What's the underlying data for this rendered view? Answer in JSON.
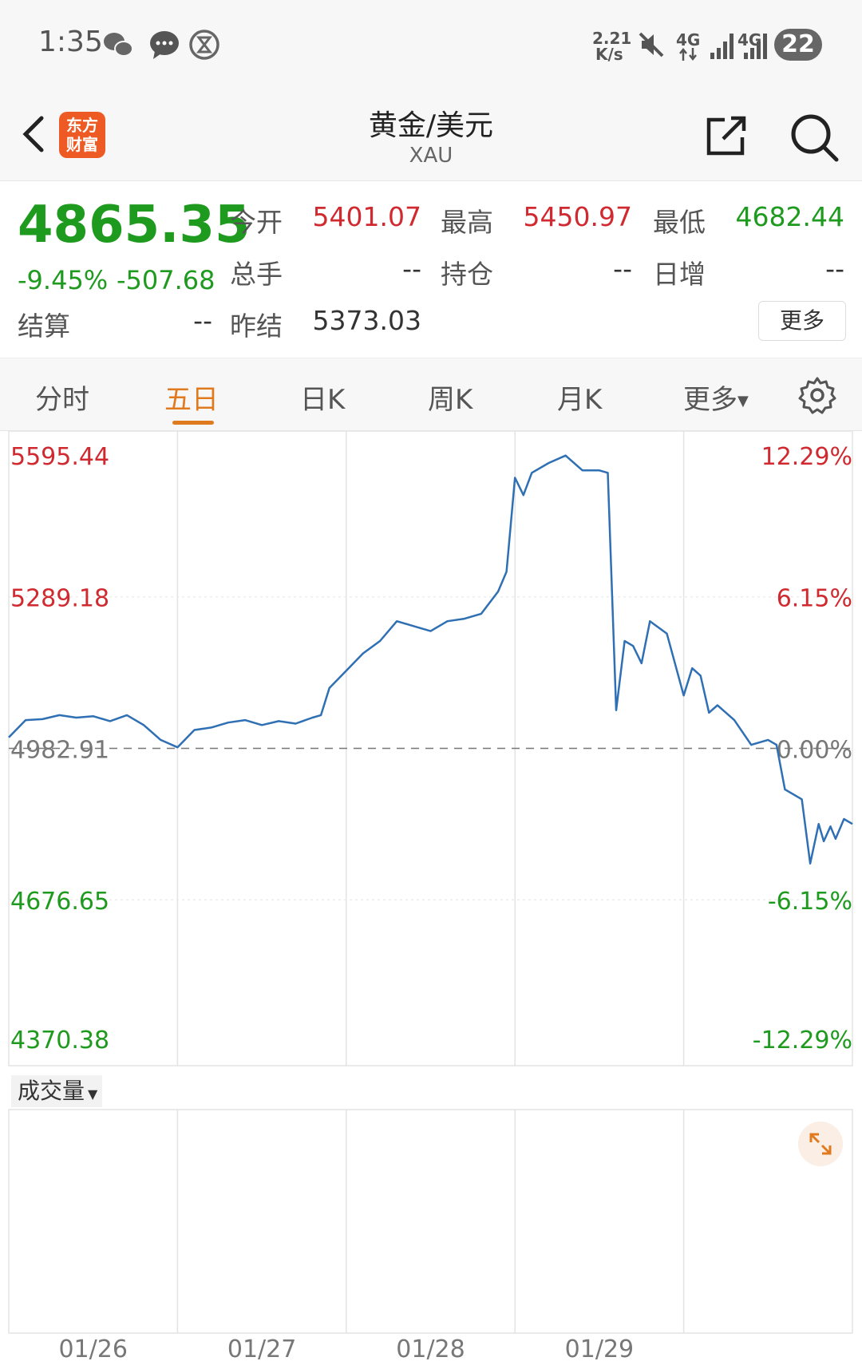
{
  "status_bar": {
    "time": "1:35",
    "net_speed_value": "2.21",
    "net_speed_unit": "K/s",
    "net_type_1": "4G",
    "net_type_2": "4G",
    "battery": "22",
    "icons": [
      "wechat-icon",
      "message-icon",
      "hourglass-icon",
      "mute-icon",
      "signal-icon",
      "signal-icon"
    ]
  },
  "header": {
    "title": "黄金/美元",
    "subtitle": "XAU",
    "logo_text_1": "东方",
    "logo_text_2": "财富",
    "icons": [
      "back-icon",
      "share-icon",
      "search-icon"
    ]
  },
  "quote": {
    "price": "4865.35",
    "change_pct": "-9.45%",
    "change_abs": "-507.68",
    "fields": [
      {
        "label": "今开",
        "value": "5401.07",
        "color": "red"
      },
      {
        "label": "最高",
        "value": "5450.97",
        "color": "red"
      },
      {
        "label": "最低",
        "value": "4682.44",
        "color": "green"
      },
      {
        "label": "总手",
        "value": "--",
        "color": "dark"
      },
      {
        "label": "持仓",
        "value": "--",
        "color": "dark"
      },
      {
        "label": "日增",
        "value": "--",
        "color": "dark"
      },
      {
        "label": "结算",
        "value": "--",
        "color": "dark"
      },
      {
        "label": "昨结",
        "value": "5373.03",
        "color": "dark"
      }
    ],
    "more_label": "更多"
  },
  "tabs": {
    "items": [
      "分时",
      "五日",
      "日K",
      "周K",
      "月K",
      "更多"
    ],
    "active": "五日"
  },
  "colors": {
    "up": "#d0292f",
    "down": "#1e9a1e",
    "line": "#2f6fb3",
    "accent": "#e07a1f"
  },
  "chart_data": {
    "type": "line",
    "x_categories": [
      "01/26",
      "01/27",
      "01/28",
      "01/29",
      ""
    ],
    "y_ticks": [
      {
        "price": "5595.44",
        "pct": "12.29%",
        "color": "red"
      },
      {
        "price": "5289.18",
        "pct": "6.15%",
        "color": "red"
      },
      {
        "price": "4982.91",
        "pct": "0.00%",
        "color": "dark"
      },
      {
        "price": "4676.65",
        "pct": "-6.15%",
        "color": "green"
      },
      {
        "price": "4370.38",
        "pct": "-12.29%",
        "color": "green"
      }
    ],
    "ylim": [
      4370.38,
      5595.44
    ],
    "baseline": 4982.91,
    "series": [
      {
        "x": [
          0,
          0.1,
          0.2,
          0.3,
          0.4,
          0.5,
          0.6,
          0.7,
          0.8,
          0.9,
          1.0,
          1.1,
          1.2,
          1.3,
          1.4,
          1.5,
          1.6,
          1.7,
          1.8,
          1.85,
          1.9,
          2.0,
          2.1,
          2.2,
          2.3,
          2.4,
          2.5,
          2.6,
          2.7,
          2.8,
          2.9,
          2.95,
          3.0,
          3.05,
          3.1,
          3.2,
          3.3,
          3.4,
          3.5,
          3.55,
          3.6,
          3.65,
          3.7,
          3.75,
          3.8,
          3.9,
          4.0,
          4.05,
          4.1,
          4.15,
          4.2,
          4.3,
          4.4,
          4.5,
          4.55,
          4.6,
          4.7,
          4.75,
          4.8,
          4.83,
          4.87,
          4.9,
          4.95,
          5.0
        ],
        "values": [
          5005,
          5040,
          5042,
          5050,
          5045,
          5048,
          5038,
          5050,
          5030,
          5000,
          4985,
          5020,
          5025,
          5035,
          5040,
          5030,
          5038,
          5033,
          5045,
          5050,
          5105,
          5140,
          5175,
          5200,
          5240,
          5230,
          5220,
          5240,
          5245,
          5255,
          5300,
          5340,
          5530,
          5495,
          5540,
          5560,
          5575,
          5545,
          5545,
          5540,
          5060,
          5200,
          5190,
          5155,
          5240,
          5215,
          5090,
          5145,
          5130,
          5055,
          5070,
          5040,
          4990,
          5000,
          4990,
          4900,
          4880,
          4750,
          4830,
          4795,
          4825,
          4800,
          4840,
          4830
        ]
      }
    ],
    "volume_label": "成交量"
  }
}
